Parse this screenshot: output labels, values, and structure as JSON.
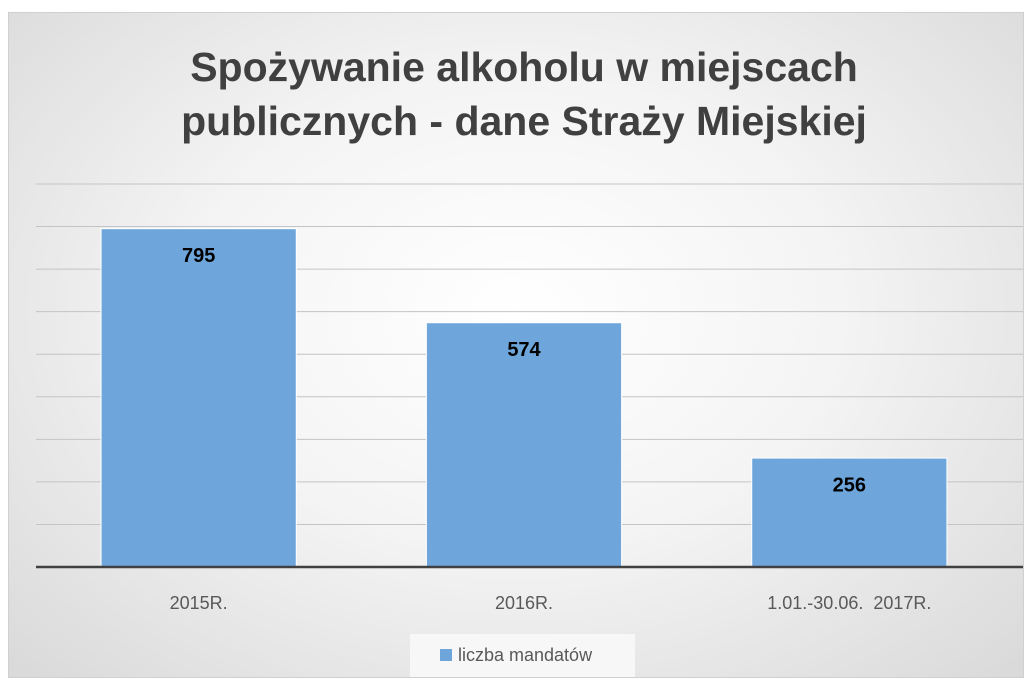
{
  "chart_data": {
    "type": "bar",
    "title": "Spożywanie alkoholu w miejscach publicznych - dane Straży Miejskiej",
    "categories": [
      "2015R.",
      "2016R.",
      "1.01.-30.06.  2017R."
    ],
    "series": [
      {
        "name": "liczba mandatów",
        "color": "#6ea6dc",
        "values": [
          795,
          574,
          256
        ]
      }
    ],
    "ylim": [
      0,
      900
    ],
    "yticks": [
      0,
      100,
      200,
      300,
      400,
      500,
      600,
      700,
      800,
      900
    ],
    "grid": true,
    "legend": "bottom"
  }
}
